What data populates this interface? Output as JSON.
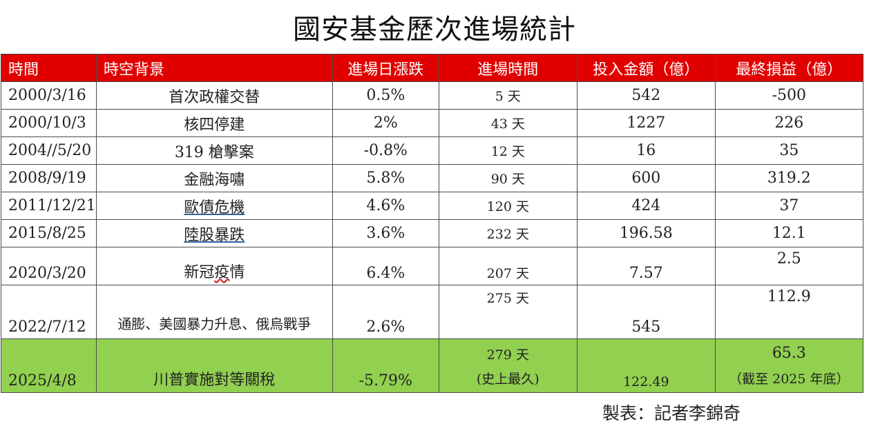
{
  "title": "國安基金歷次進場統計",
  "headers": [
    "時間",
    "時空背景",
    "進場日漲跌",
    "進場時間",
    "投入金額（億）",
    "最終損益（億）"
  ],
  "rows": [
    {
      "date": "2000/3/16",
      "background": "首次政權交替",
      "change": "0.5%",
      "duration": "5 天",
      "amount": "542",
      "pnl": "-500"
    },
    {
      "date": "2000/10/3",
      "background": "核四停建",
      "change": "2%",
      "duration": "43 天",
      "amount": "1227",
      "pnl": "226"
    },
    {
      "date": "2004//5/20",
      "background": "319 槍擊案",
      "change": "-0.8%",
      "duration": "12 天",
      "amount": "16",
      "pnl": "35"
    },
    {
      "date": "2008/9/19",
      "background": "金融海嘯",
      "change": "5.8%",
      "duration": "90 天",
      "amount": "600",
      "pnl": "319.2"
    },
    {
      "date": "2011/12/21",
      "background": "歐債危機",
      "change": "4.6%",
      "duration": "120 天",
      "amount": "424",
      "pnl": "37"
    },
    {
      "date": "2015/8/25",
      "background": "陸股暴跌",
      "change": "3.6%",
      "duration": "232 天",
      "amount": "196.58",
      "pnl": "12.1"
    },
    {
      "date": "2020/3/20",
      "background_a": "新冠",
      "background_b": "疫",
      "background_c": "情",
      "change": "6.4%",
      "duration": "207 天",
      "amount": "7.57",
      "pnl": "2.5"
    },
    {
      "date": "2022/7/12",
      "background": "通膨、美國暴力升息、俄烏戰爭",
      "change": "2.6%",
      "duration": "275 天",
      "amount": "545",
      "pnl": "112.9"
    },
    {
      "date": "2025/4/8",
      "background": "川普實施對等關稅",
      "change": "-5.79%",
      "duration": "279 天",
      "duration_note": "(史上最久)",
      "amount": "122.49",
      "pnl": "65.3",
      "pnl_note": "（截至 2025 年底）"
    }
  ],
  "footer_note": "製表：記者李錦奇",
  "colors": {
    "header_bg": "#e00000",
    "highlight_row": "#92d050",
    "underline": "#2f5f9f"
  }
}
